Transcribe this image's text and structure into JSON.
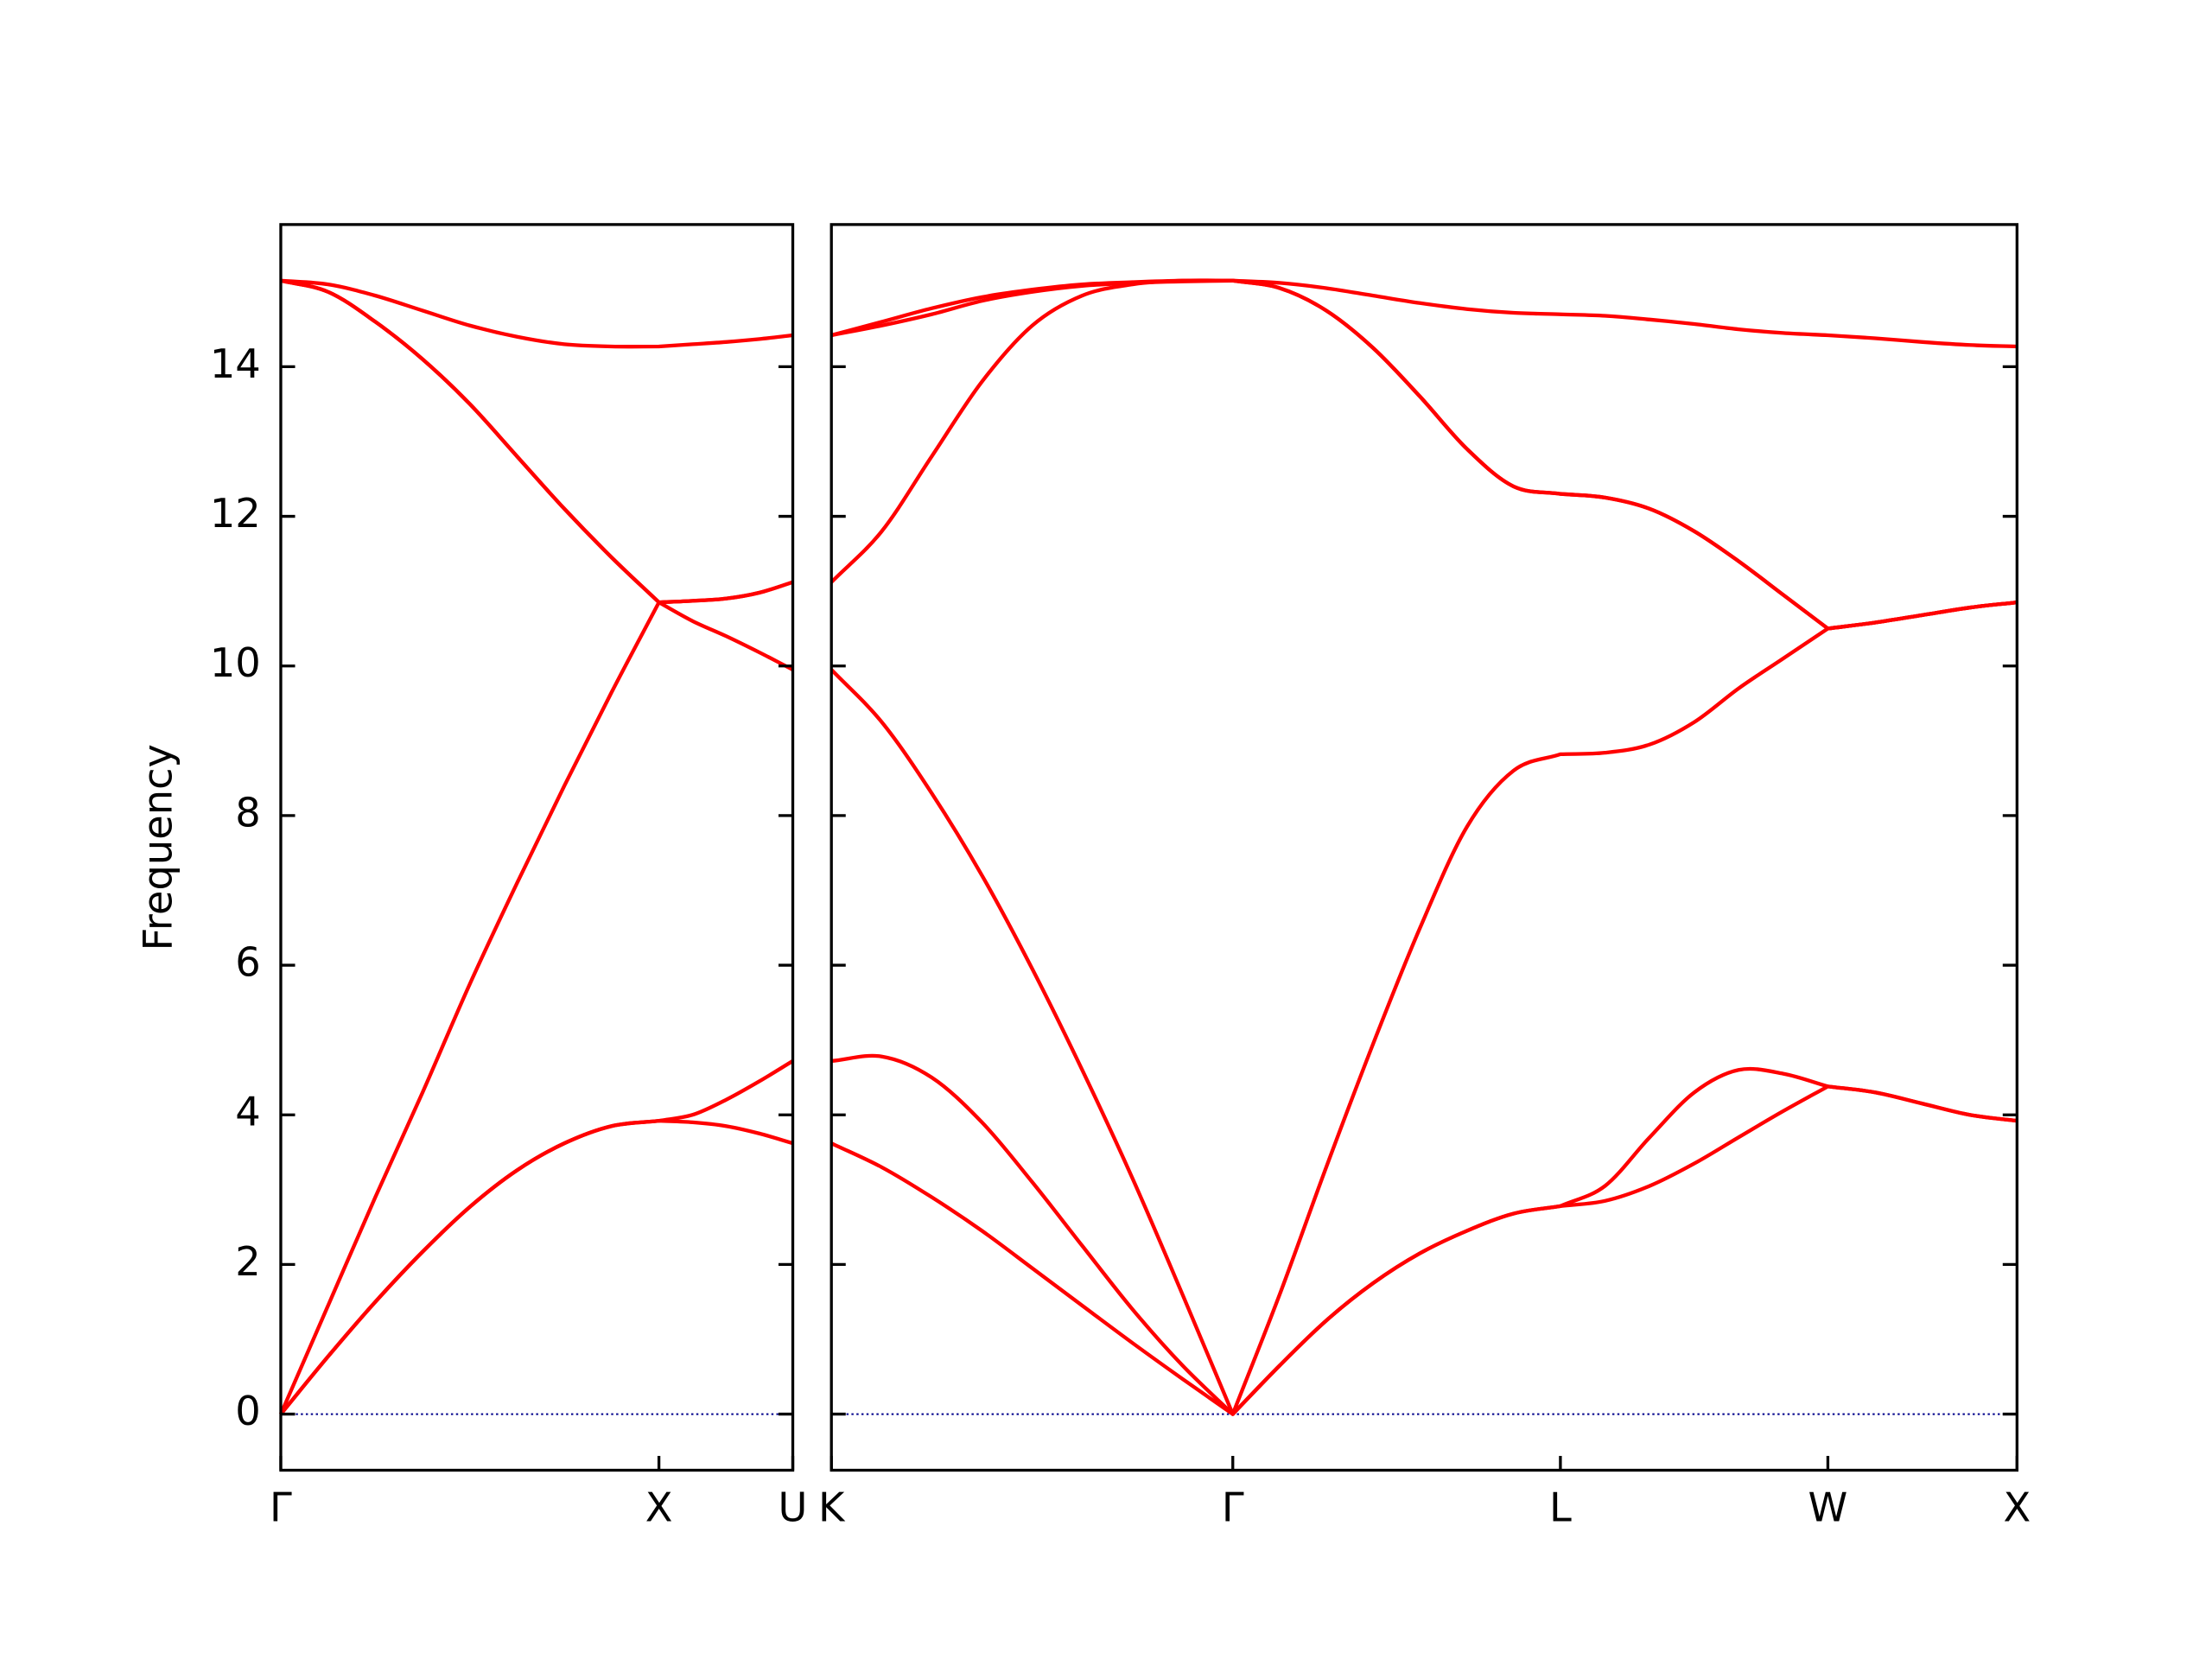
{
  "chart_data": [
    {
      "type": "line",
      "ylabel": "Frequency",
      "color": "#ff0000",
      "ytick_labels": true,
      "x": [
        0,
        0.125,
        0.25,
        0.375,
        0.5,
        0.625,
        0.75,
        0.875,
        1.0,
        1.089,
        1.177,
        1.266,
        1.354
      ],
      "xlim": [
        0,
        1.354
      ],
      "xticks": [
        {
          "value": 0,
          "label": "Γ"
        },
        {
          "value": 1.0,
          "label": "X"
        },
        {
          "value": 1.354,
          "label": "U"
        }
      ],
      "ylim": [
        -0.75,
        15.9
      ],
      "yticks": [
        0,
        2,
        4,
        6,
        8,
        10,
        12,
        14
      ],
      "hlines": [
        {
          "y": 0,
          "color": "#00008b",
          "style": "dotted"
        }
      ],
      "series": [
        {
          "values": [
            0,
            0.77,
            1.5,
            2.17,
            2.77,
            3.26,
            3.62,
            3.85,
            3.92,
            3.9,
            3.85,
            3.75,
            3.62
          ]
        },
        {
          "values": [
            0,
            0.77,
            1.5,
            2.17,
            2.77,
            3.26,
            3.62,
            3.85,
            3.92,
            4.0,
            4.2,
            4.45,
            4.72
          ]
        },
        {
          "values": [
            0,
            1.45,
            2.9,
            4.3,
            5.75,
            7.1,
            8.4,
            9.65,
            10.85,
            10.6,
            10.4,
            10.18,
            9.95
          ]
        },
        {
          "values": [
            15.15,
            15.0,
            14.6,
            14.1,
            13.5,
            12.8,
            12.1,
            11.45,
            10.85,
            10.87,
            10.9,
            10.98,
            11.12
          ]
        },
        {
          "values": [
            15.15,
            15.0,
            14.6,
            14.1,
            13.5,
            12.8,
            12.1,
            11.45,
            10.85,
            10.87,
            10.9,
            10.98,
            11.12
          ]
        },
        {
          "values": [
            15.15,
            15.1,
            14.95,
            14.75,
            14.55,
            14.4,
            14.3,
            14.27,
            14.27,
            14.3,
            14.33,
            14.37,
            14.42
          ]
        }
      ]
    },
    {
      "type": "line",
      "color": "#ff0000",
      "ytick_labels": false,
      "x": [
        1.354,
        1.487,
        1.619,
        1.752,
        1.885,
        2.017,
        2.15,
        2.282,
        2.415,
        2.539,
        2.662,
        2.786,
        2.91,
        3.034,
        3.157,
        3.281,
        3.399,
        3.517,
        3.635,
        3.752,
        3.87,
        3.988,
        4.113,
        4.238,
        4.363,
        4.488
      ],
      "xlim": [
        1.354,
        4.488
      ],
      "xticks": [
        {
          "value": 1.354,
          "label": "K"
        },
        {
          "value": 2.415,
          "label": "Γ"
        },
        {
          "value": 3.281,
          "label": "L"
        },
        {
          "value": 3.988,
          "label": "W"
        },
        {
          "value": 4.488,
          "label": "X"
        }
      ],
      "ylim": [
        -0.75,
        15.9
      ],
      "yticks": [
        0,
        2,
        4,
        6,
        8,
        10,
        12,
        14
      ],
      "hlines": [
        {
          "y": 0,
          "color": "#00008b",
          "style": "dotted"
        }
      ],
      "series": [
        {
          "values": [
            3.62,
            3.3,
            2.9,
            2.45,
            1.95,
            1.45,
            0.95,
            0.47,
            0,
            0.65,
            1.25,
            1.75,
            2.15,
            2.45,
            2.68,
            2.78,
            2.85,
            3.05,
            3.35,
            3.7,
            4.05,
            4.38,
            4.3,
            4.15,
            4.0,
            3.92
          ]
        },
        {
          "values": [
            4.72,
            4.78,
            4.5,
            3.9,
            3.1,
            2.25,
            1.4,
            0.65,
            0,
            0.65,
            1.25,
            1.75,
            2.15,
            2.45,
            2.68,
            2.78,
            3.05,
            3.7,
            4.3,
            4.6,
            4.55,
            4.38,
            4.3,
            4.15,
            4.0,
            3.92
          ]
        },
        {
          "values": [
            9.95,
            9.25,
            8.3,
            7.2,
            5.95,
            4.6,
            3.15,
            1.6,
            0,
            1.6,
            3.3,
            4.95,
            6.5,
            7.85,
            8.6,
            8.82,
            8.84,
            8.95,
            9.25,
            9.7,
            10.1,
            10.5,
            10.58,
            10.68,
            10.78,
            10.85
          ]
        },
        {
          "values": [
            11.12,
            11.8,
            12.8,
            13.8,
            14.55,
            14.95,
            15.1,
            15.15,
            15.15,
            15.05,
            14.75,
            14.25,
            13.6,
            12.9,
            12.4,
            12.3,
            12.25,
            12.1,
            11.8,
            11.4,
            10.95,
            10.5,
            10.58,
            10.68,
            10.78,
            10.85
          ]
        },
        {
          "values": [
            14.42,
            14.55,
            14.7,
            14.88,
            15.0,
            15.08,
            15.12,
            15.14,
            15.15,
            15.05,
            14.75,
            14.25,
            13.6,
            12.9,
            12.4,
            12.3,
            12.25,
            12.1,
            11.8,
            11.4,
            10.95,
            10.5,
            10.58,
            10.68,
            10.78,
            10.85
          ]
        },
        {
          "values": [
            14.42,
            14.6,
            14.78,
            14.93,
            15.03,
            15.1,
            15.13,
            15.15,
            15.15,
            15.12,
            15.05,
            14.95,
            14.85,
            14.77,
            14.72,
            14.7,
            14.68,
            14.63,
            14.57,
            14.5,
            14.45,
            14.42,
            14.38,
            14.33,
            14.29,
            14.27
          ]
        }
      ]
    }
  ]
}
